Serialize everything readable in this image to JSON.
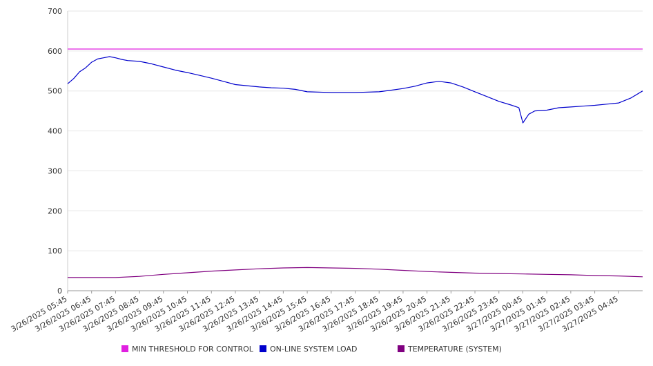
{
  "chart_data": {
    "type": "line",
    "title": "",
    "xlabel": "",
    "ylabel": "",
    "ylim": [
      0,
      700
    ],
    "yticks": [
      0,
      100,
      200,
      300,
      400,
      500,
      600,
      700
    ],
    "ytick_labels": [
      "0",
      "100",
      "200",
      "300",
      "400",
      "500",
      "600",
      "700"
    ],
    "xlim": [
      "3/26/2025 05:45",
      "3/27/2025 05:45"
    ],
    "xtick_labels": [
      "3/26/2025 05:45",
      "3/26/2025 06:45",
      "3/26/2025 07:45",
      "3/26/2025 08:45",
      "3/26/2025 09:45",
      "3/26/2025 10:45",
      "3/26/2025 11:45",
      "3/26/2025 12:45",
      "3/26/2025 13:45",
      "3/26/2025 14:45",
      "3/26/2025 15:45",
      "3/26/2025 16:45",
      "3/26/2025 17:45",
      "3/26/2025 18:45",
      "3/26/2025 19:45",
      "3/26/2025 20:45",
      "3/26/2025 21:45",
      "3/26/2025 22:45",
      "3/26/2025 23:45",
      "3/27/2025 00:45",
      "3/27/2025 01:45",
      "3/27/2025 02:45",
      "3/27/2025 03:45",
      "3/27/2025 04:45"
    ],
    "grid": "horizontal",
    "legend_position": "bottom",
    "series": [
      {
        "name": "MIN THRESHOLD FOR CONTROL",
        "color": "#e020e0",
        "x": [
          "3/26/2025 05:45",
          "3/27/2025 05:45"
        ],
        "y": [
          605,
          605
        ]
      },
      {
        "name": "ON-LINE SYSTEM LOAD",
        "color": "#0000cc",
        "x": [
          "3/26/2025 05:45",
          "3/26/2025 06:00",
          "3/26/2025 06:15",
          "3/26/2025 06:30",
          "3/26/2025 06:45",
          "3/26/2025 07:00",
          "3/26/2025 07:15",
          "3/26/2025 07:30",
          "3/26/2025 07:45",
          "3/26/2025 08:00",
          "3/26/2025 08:15",
          "3/26/2025 08:45",
          "3/26/2025 09:15",
          "3/26/2025 09:45",
          "3/26/2025 10:15",
          "3/26/2025 10:45",
          "3/26/2025 11:15",
          "3/26/2025 11:45",
          "3/26/2025 12:15",
          "3/26/2025 12:45",
          "3/26/2025 13:45",
          "3/26/2025 14:15",
          "3/26/2025 14:45",
          "3/26/2025 15:15",
          "3/26/2025 15:45",
          "3/26/2025 16:45",
          "3/26/2025 17:45",
          "3/26/2025 18:45",
          "3/26/2025 19:15",
          "3/26/2025 19:45",
          "3/26/2025 20:15",
          "3/26/2025 20:45",
          "3/26/2025 21:15",
          "3/26/2025 21:45",
          "3/26/2025 22:15",
          "3/26/2025 22:45",
          "3/26/2025 23:15",
          "3/26/2025 23:45",
          "3/27/2025 00:15",
          "3/27/2025 00:30",
          "3/27/2025 00:35",
          "3/27/2025 00:45",
          "3/27/2025 01:00",
          "3/27/2025 01:15",
          "3/27/2025 01:45",
          "3/27/2025 02:15",
          "3/27/2025 02:45",
          "3/27/2025 03:15",
          "3/27/2025 03:45",
          "3/27/2025 04:15",
          "3/27/2025 04:45",
          "3/27/2025 05:15",
          "3/27/2025 05:45"
        ],
        "y": [
          518,
          531,
          548,
          558,
          572,
          580,
          583,
          586,
          583,
          579,
          576,
          574,
          568,
          560,
          552,
          546,
          539,
          532,
          524,
          516,
          510,
          508,
          507,
          504,
          498,
          496,
          496,
          498,
          502,
          506,
          512,
          520,
          524,
          520,
          510,
          498,
          486,
          474,
          465,
          460,
          458,
          420,
          442,
          450,
          452,
          458,
          460,
          462,
          464,
          467,
          470,
          482,
          500
        ]
      },
      {
        "name": "TEMPERATURE (SYSTEM)",
        "color": "#800080",
        "x": [
          "3/26/2025 05:45",
          "3/26/2025 07:45",
          "3/26/2025 08:45",
          "3/26/2025 09:45",
          "3/26/2025 10:45",
          "3/26/2025 11:45",
          "3/26/2025 12:45",
          "3/26/2025 13:45",
          "3/26/2025 14:45",
          "3/26/2025 15:45",
          "3/26/2025 16:45",
          "3/26/2025 17:45",
          "3/26/2025 18:45",
          "3/26/2025 19:45",
          "3/26/2025 20:45",
          "3/26/2025 21:45",
          "3/26/2025 22:45",
          "3/26/2025 23:45",
          "3/27/2025 00:45",
          "3/27/2025 01:45",
          "3/27/2025 02:45",
          "3/27/2025 03:45",
          "3/27/2025 04:45",
          "3/27/2025 05:45"
        ],
        "y": [
          33,
          33,
          36,
          41,
          45,
          49,
          52,
          55,
          57,
          58,
          57,
          56,
          54,
          51,
          48,
          46,
          44,
          43,
          42,
          41,
          40,
          38,
          37,
          35
        ]
      }
    ]
  }
}
